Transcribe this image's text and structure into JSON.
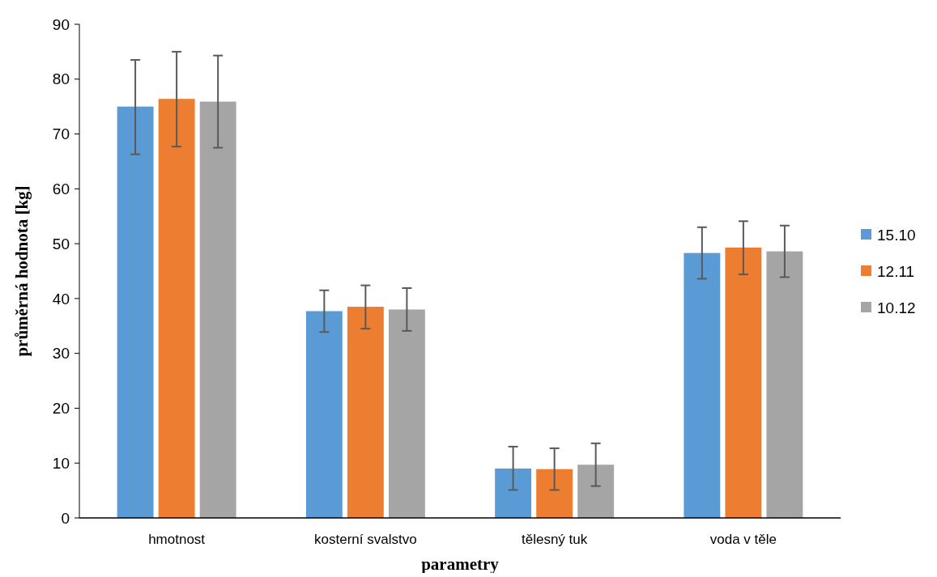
{
  "chart_data": {
    "type": "bar",
    "xlabel": "parametry",
    "ylabel": "průměrná hodnota [kg]",
    "categories": [
      "hmotnost",
      "kosterní svalstvo",
      "tělesný tuk",
      "voda v těle"
    ],
    "series": [
      {
        "name": "15.10",
        "color": "#5b9bd5",
        "values": [
          75.0,
          37.7,
          9.0,
          48.3
        ],
        "errors": [
          [
            66.3,
            83.5
          ],
          [
            33.9,
            41.5
          ],
          [
            5.1,
            13.0
          ],
          [
            43.6,
            53.0
          ]
        ]
      },
      {
        "name": "12.11",
        "color": "#ed7d31",
        "values": [
          76.4,
          38.5,
          8.9,
          49.3
        ],
        "errors": [
          [
            67.7,
            85.0
          ],
          [
            34.5,
            42.4
          ],
          [
            5.1,
            12.7
          ],
          [
            44.4,
            54.1
          ]
        ]
      },
      {
        "name": "10.12",
        "color": "#a5a5a5",
        "values": [
          75.9,
          38.0,
          9.7,
          48.6
        ],
        "errors": [
          [
            67.5,
            84.3
          ],
          [
            34.1,
            41.9
          ],
          [
            5.8,
            13.6
          ],
          [
            43.9,
            53.3
          ]
        ]
      }
    ],
    "ylim": [
      0,
      90
    ],
    "yticks": [
      0,
      10,
      20,
      30,
      40,
      50,
      60,
      70,
      80,
      90
    ],
    "grid": false,
    "legend": "right"
  }
}
